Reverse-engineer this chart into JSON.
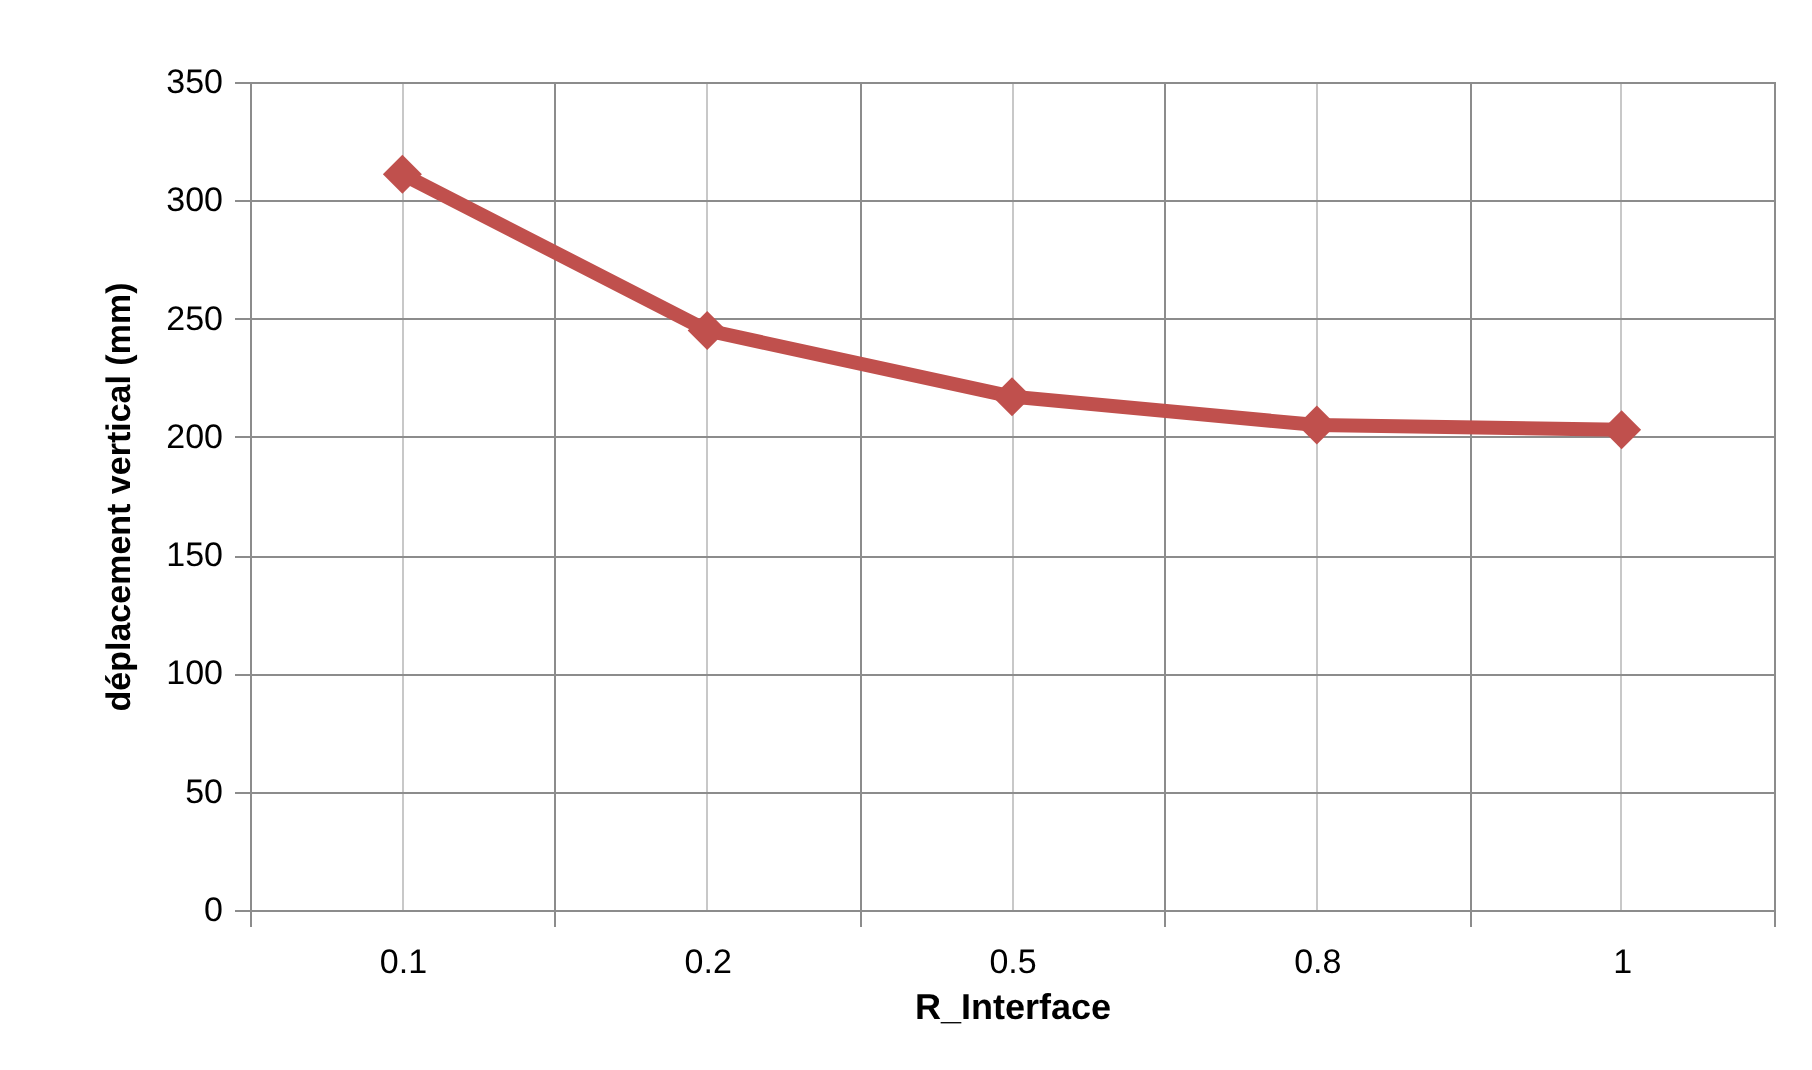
{
  "chart_data": {
    "type": "line",
    "xlabel": "R_Interface",
    "ylabel": "déplacement vertical (mm)",
    "categories": [
      "0.1",
      "0.2",
      "0.5",
      "0.8",
      "1"
    ],
    "series": [
      {
        "color": "#c0504d",
        "values": [
          311,
          245,
          217,
          205,
          203
        ]
      }
    ],
    "ylim": [
      0,
      350
    ],
    "yticks": [
      0,
      50,
      100,
      150,
      200,
      250,
      300,
      350
    ],
    "grid": true,
    "legend": false,
    "marker": "diamond",
    "line_style": "solid"
  }
}
